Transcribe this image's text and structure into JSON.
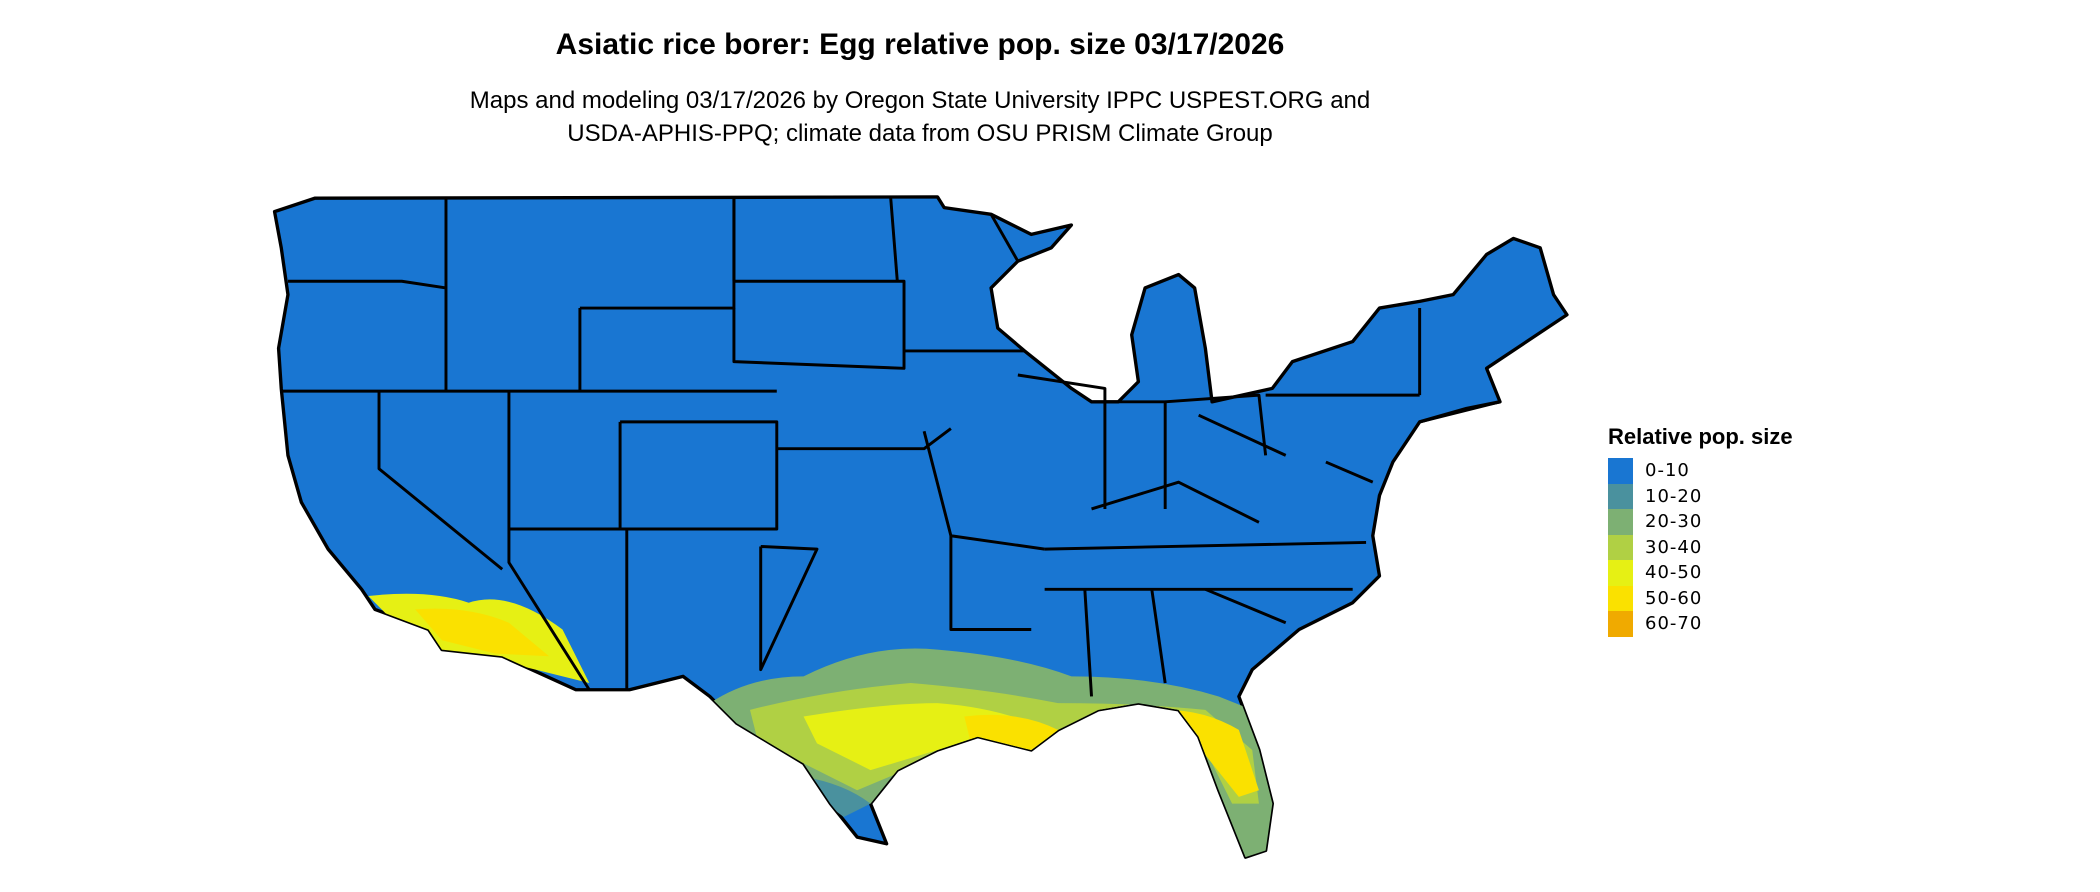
{
  "title": "Asiatic rice borer: Egg relative pop. size 03/17/2026",
  "subtitle_lines": [
    "Maps and modeling 03/17/2026 by Oregon State University IPPC USPEST.ORG and",
    "USDA-APHIS-PPQ; climate data from OSU PRISM Climate Group"
  ],
  "map": {
    "region": "Contiguous United States",
    "background_class_color": "#1976D2",
    "border_color": "#000000"
  },
  "legend": {
    "title": "Relative pop. size",
    "items": [
      {
        "label": "0-10",
        "color": "#1976D2"
      },
      {
        "label": "10-20",
        "color": "#4A919E"
      },
      {
        "label": "20-30",
        "color": "#7DB073"
      },
      {
        "label": "30-40",
        "color": "#B0D044"
      },
      {
        "label": "40-50",
        "color": "#E6F014"
      },
      {
        "label": "50-60",
        "color": "#FAE100"
      },
      {
        "label": "60-70",
        "color": "#F0AA00"
      }
    ]
  }
}
